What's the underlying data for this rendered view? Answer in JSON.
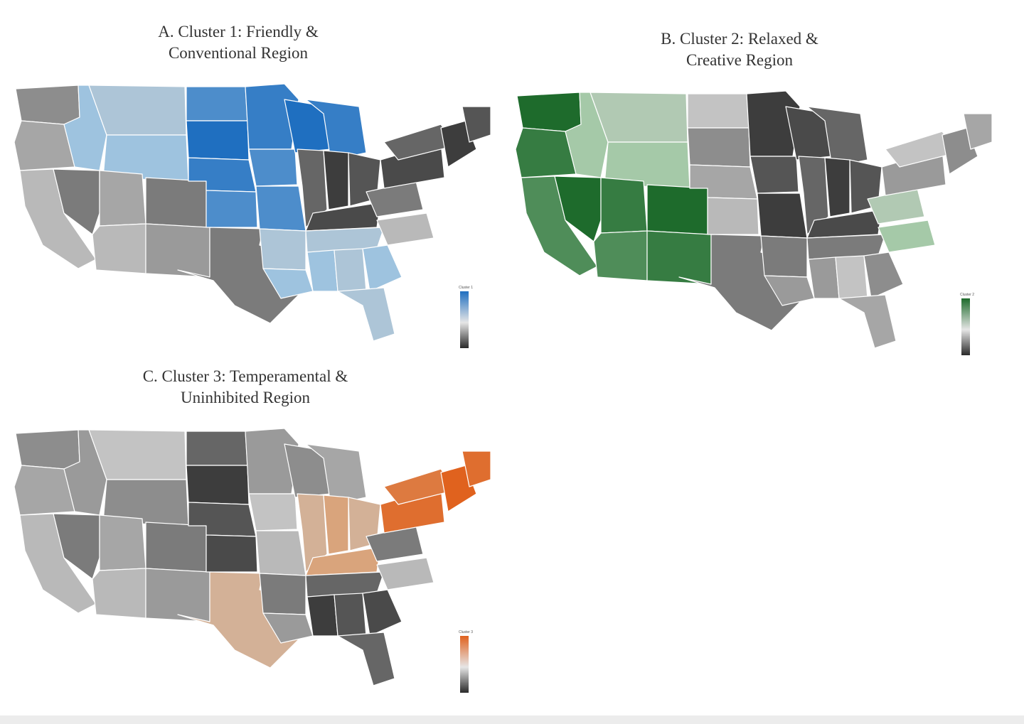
{
  "panels": [
    {
      "id": "a",
      "title": "A. Cluster 1: Friendly &\nConventional Region",
      "legend_title": "Cluster 1",
      "accent": "#1f6fc0",
      "light": "#9ec3df",
      "high_regions": [
        "midwest-north",
        "plains"
      ],
      "mid_regions": [
        "south-central",
        "southeast",
        "mountain-north"
      ],
      "low_regions": [
        "northeast",
        "ohio-valley"
      ]
    },
    {
      "id": "b",
      "title": "B. Cluster 2: Relaxed &\nCreative Region",
      "legend_title": "Cluster 2",
      "accent": "#1e6b2c",
      "light": "#a5c9a8",
      "high_regions": [
        "pacific",
        "southwest"
      ],
      "mid_regions": [
        "mountain-north",
        "atlantic-south"
      ],
      "low_regions": [
        "midwest-north",
        "ohio-valley"
      ]
    },
    {
      "id": "c",
      "title": "C. Cluster 3: Temperamental &\nUninhibited Region",
      "legend_title": "Cluster 3",
      "accent": "#e0621e",
      "light": "#d9a47c",
      "high_regions": [
        "northeast"
      ],
      "mid_regions": [
        "texas",
        "ohio-valley"
      ],
      "low_regions": [
        "southeast",
        "plains"
      ]
    }
  ]
}
